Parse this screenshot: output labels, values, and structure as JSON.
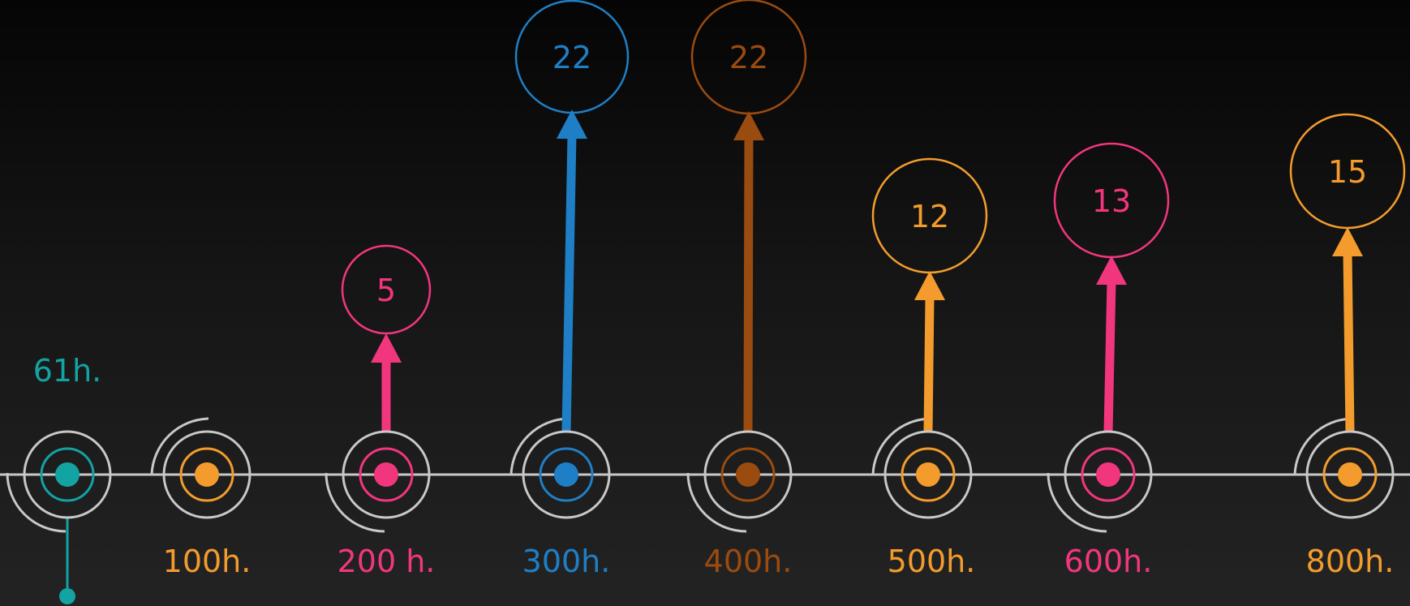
{
  "nodes": [
    {
      "label": "61h.",
      "color": "#13a3a3",
      "arrow_value": null
    },
    {
      "label": "100h.",
      "color": "#f39c2d",
      "arrow_value": null
    },
    {
      "label": "200 h.",
      "color": "#f2367e",
      "arrow_value": "5"
    },
    {
      "label": "300h.",
      "color": "#1f7fc6",
      "arrow_value": "22"
    },
    {
      "label": "400h.",
      "color": "#9a4b0f",
      "arrow_value": "22"
    },
    {
      "label": "500h.",
      "color": "#f39c2d",
      "arrow_value": "12"
    },
    {
      "label": "600h.",
      "color": "#f2367e",
      "arrow_value": "13"
    },
    {
      "label": "800h.",
      "color": "#f39c2d",
      "arrow_value": "15"
    }
  ],
  "ring_color": "#c8c8c8",
  "baseline_color": "#c8c8c8"
}
